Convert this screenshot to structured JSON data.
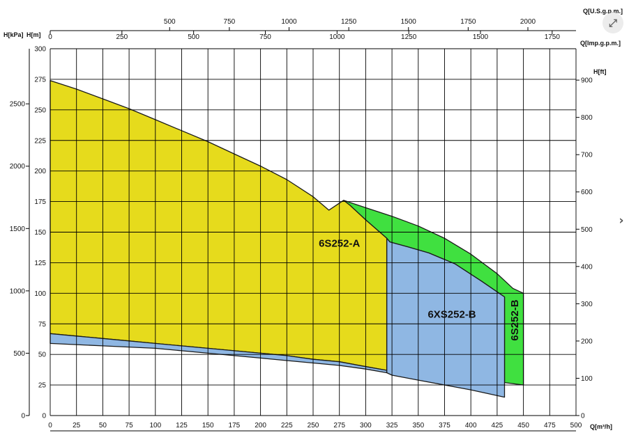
{
  "ui": {
    "expand_glyph": "⤢",
    "next_glyph": "›"
  },
  "chart_data": {
    "type": "area",
    "title": "",
    "x_axis": {
      "label": "Q[m³/h]",
      "range": [
        0,
        500
      ],
      "ticks": [
        0,
        25,
        50,
        75,
        100,
        125,
        150,
        175,
        200,
        225,
        250,
        275,
        300,
        325,
        350,
        375,
        400,
        425,
        450,
        475,
        500
      ]
    },
    "y_axis_left": {
      "label": "H[m]",
      "range": [
        0,
        300
      ],
      "ticks": [
        0,
        25,
        50,
        75,
        100,
        125,
        150,
        175,
        200,
        225,
        250,
        275,
        300
      ]
    },
    "y_axis_kpa": {
      "label": "H[kPa]",
      "ticks": [
        0,
        500,
        1000,
        1500,
        2000,
        2500
      ],
      "m_per_unit": 0.10197
    },
    "y_axis_right": {
      "label": "H[ft]",
      "ticks": [
        0,
        100,
        200,
        300,
        400,
        500,
        600,
        700,
        800,
        900
      ],
      "m_per_unit": 0.3048
    },
    "x_axis_top_imp": {
      "label": "Q[Imp.g.p.m.]",
      "ticks": [
        0,
        250,
        500,
        750,
        1000,
        1250,
        1500,
        1750
      ],
      "m3h_per_unit": 0.272765
    },
    "x_axis_top_us": {
      "label": "Q[U.S.g.p.m.]",
      "ticks": [
        500,
        750,
        1000,
        1250,
        1500,
        1750,
        2000
      ],
      "m3h_per_unit": 0.227125
    },
    "grid": true,
    "regions": [
      {
        "name": "6S252-B",
        "color": "#40e040",
        "label_rotated": true,
        "label_at": [
          445,
          78
        ],
        "polygon": [
          [
            279,
            176
          ],
          [
            300,
            170
          ],
          [
            325,
            163
          ],
          [
            350,
            155
          ],
          [
            375,
            145
          ],
          [
            400,
            132
          ],
          [
            425,
            116
          ],
          [
            440,
            104
          ],
          [
            450,
            100
          ],
          [
            450,
            25
          ],
          [
            432,
            27
          ],
          [
            432,
            97
          ],
          [
            410,
            110
          ],
          [
            385,
            124
          ],
          [
            360,
            133
          ],
          [
            340,
            138
          ],
          [
            323,
            142
          ],
          [
            320,
            145
          ],
          [
            300,
            160
          ],
          [
            285,
            172
          ]
        ]
      },
      {
        "name": "6XS252-B",
        "color": "#8fb7e3",
        "label_rotated": false,
        "label_at": [
          382,
          80
        ],
        "polygon": [
          [
            320,
            145
          ],
          [
            323,
            142
          ],
          [
            340,
            138
          ],
          [
            360,
            133
          ],
          [
            385,
            124
          ],
          [
            410,
            110
          ],
          [
            432,
            97
          ],
          [
            432,
            15
          ],
          [
            400,
            21
          ],
          [
            375,
            25
          ],
          [
            350,
            29
          ],
          [
            325,
            33
          ],
          [
            320,
            35
          ]
        ]
      },
      {
        "name": "6S252-A",
        "color": "#e6db1c",
        "label_rotated": false,
        "label_at": [
          275,
          138
        ],
        "polygon": [
          [
            0,
            274
          ],
          [
            25,
            267
          ],
          [
            50,
            259
          ],
          [
            75,
            251
          ],
          [
            100,
            242
          ],
          [
            125,
            233
          ],
          [
            150,
            224
          ],
          [
            175,
            214
          ],
          [
            200,
            204
          ],
          [
            225,
            193
          ],
          [
            250,
            179
          ],
          [
            265,
            168
          ],
          [
            279,
            176
          ],
          [
            285,
            172
          ],
          [
            300,
            160
          ],
          [
            320,
            145
          ],
          [
            320,
            37
          ],
          [
            300,
            40
          ],
          [
            275,
            44
          ],
          [
            250,
            46
          ],
          [
            225,
            49
          ],
          [
            200,
            51
          ],
          [
            175,
            53
          ],
          [
            150,
            55
          ],
          [
            125,
            57
          ],
          [
            100,
            59
          ],
          [
            75,
            61
          ],
          [
            50,
            63
          ],
          [
            25,
            65
          ],
          [
            0,
            67
          ]
        ]
      },
      {
        "name": "",
        "color": "#8fb7e3",
        "label_rotated": false,
        "label_at": null,
        "polygon": [
          [
            0,
            67
          ],
          [
            25,
            65
          ],
          [
            50,
            63
          ],
          [
            75,
            61
          ],
          [
            100,
            59
          ],
          [
            125,
            57
          ],
          [
            150,
            55
          ],
          [
            175,
            53
          ],
          [
            200,
            51
          ],
          [
            225,
            49
          ],
          [
            250,
            46
          ],
          [
            275,
            44
          ],
          [
            300,
            40
          ],
          [
            320,
            37
          ],
          [
            320,
            35
          ],
          [
            300,
            38
          ],
          [
            275,
            41
          ],
          [
            250,
            43
          ],
          [
            225,
            45
          ],
          [
            200,
            47
          ],
          [
            175,
            49
          ],
          [
            150,
            51
          ],
          [
            125,
            53
          ],
          [
            100,
            55
          ],
          [
            75,
            56
          ],
          [
            50,
            57
          ],
          [
            25,
            58
          ],
          [
            0,
            59
          ]
        ]
      }
    ]
  }
}
